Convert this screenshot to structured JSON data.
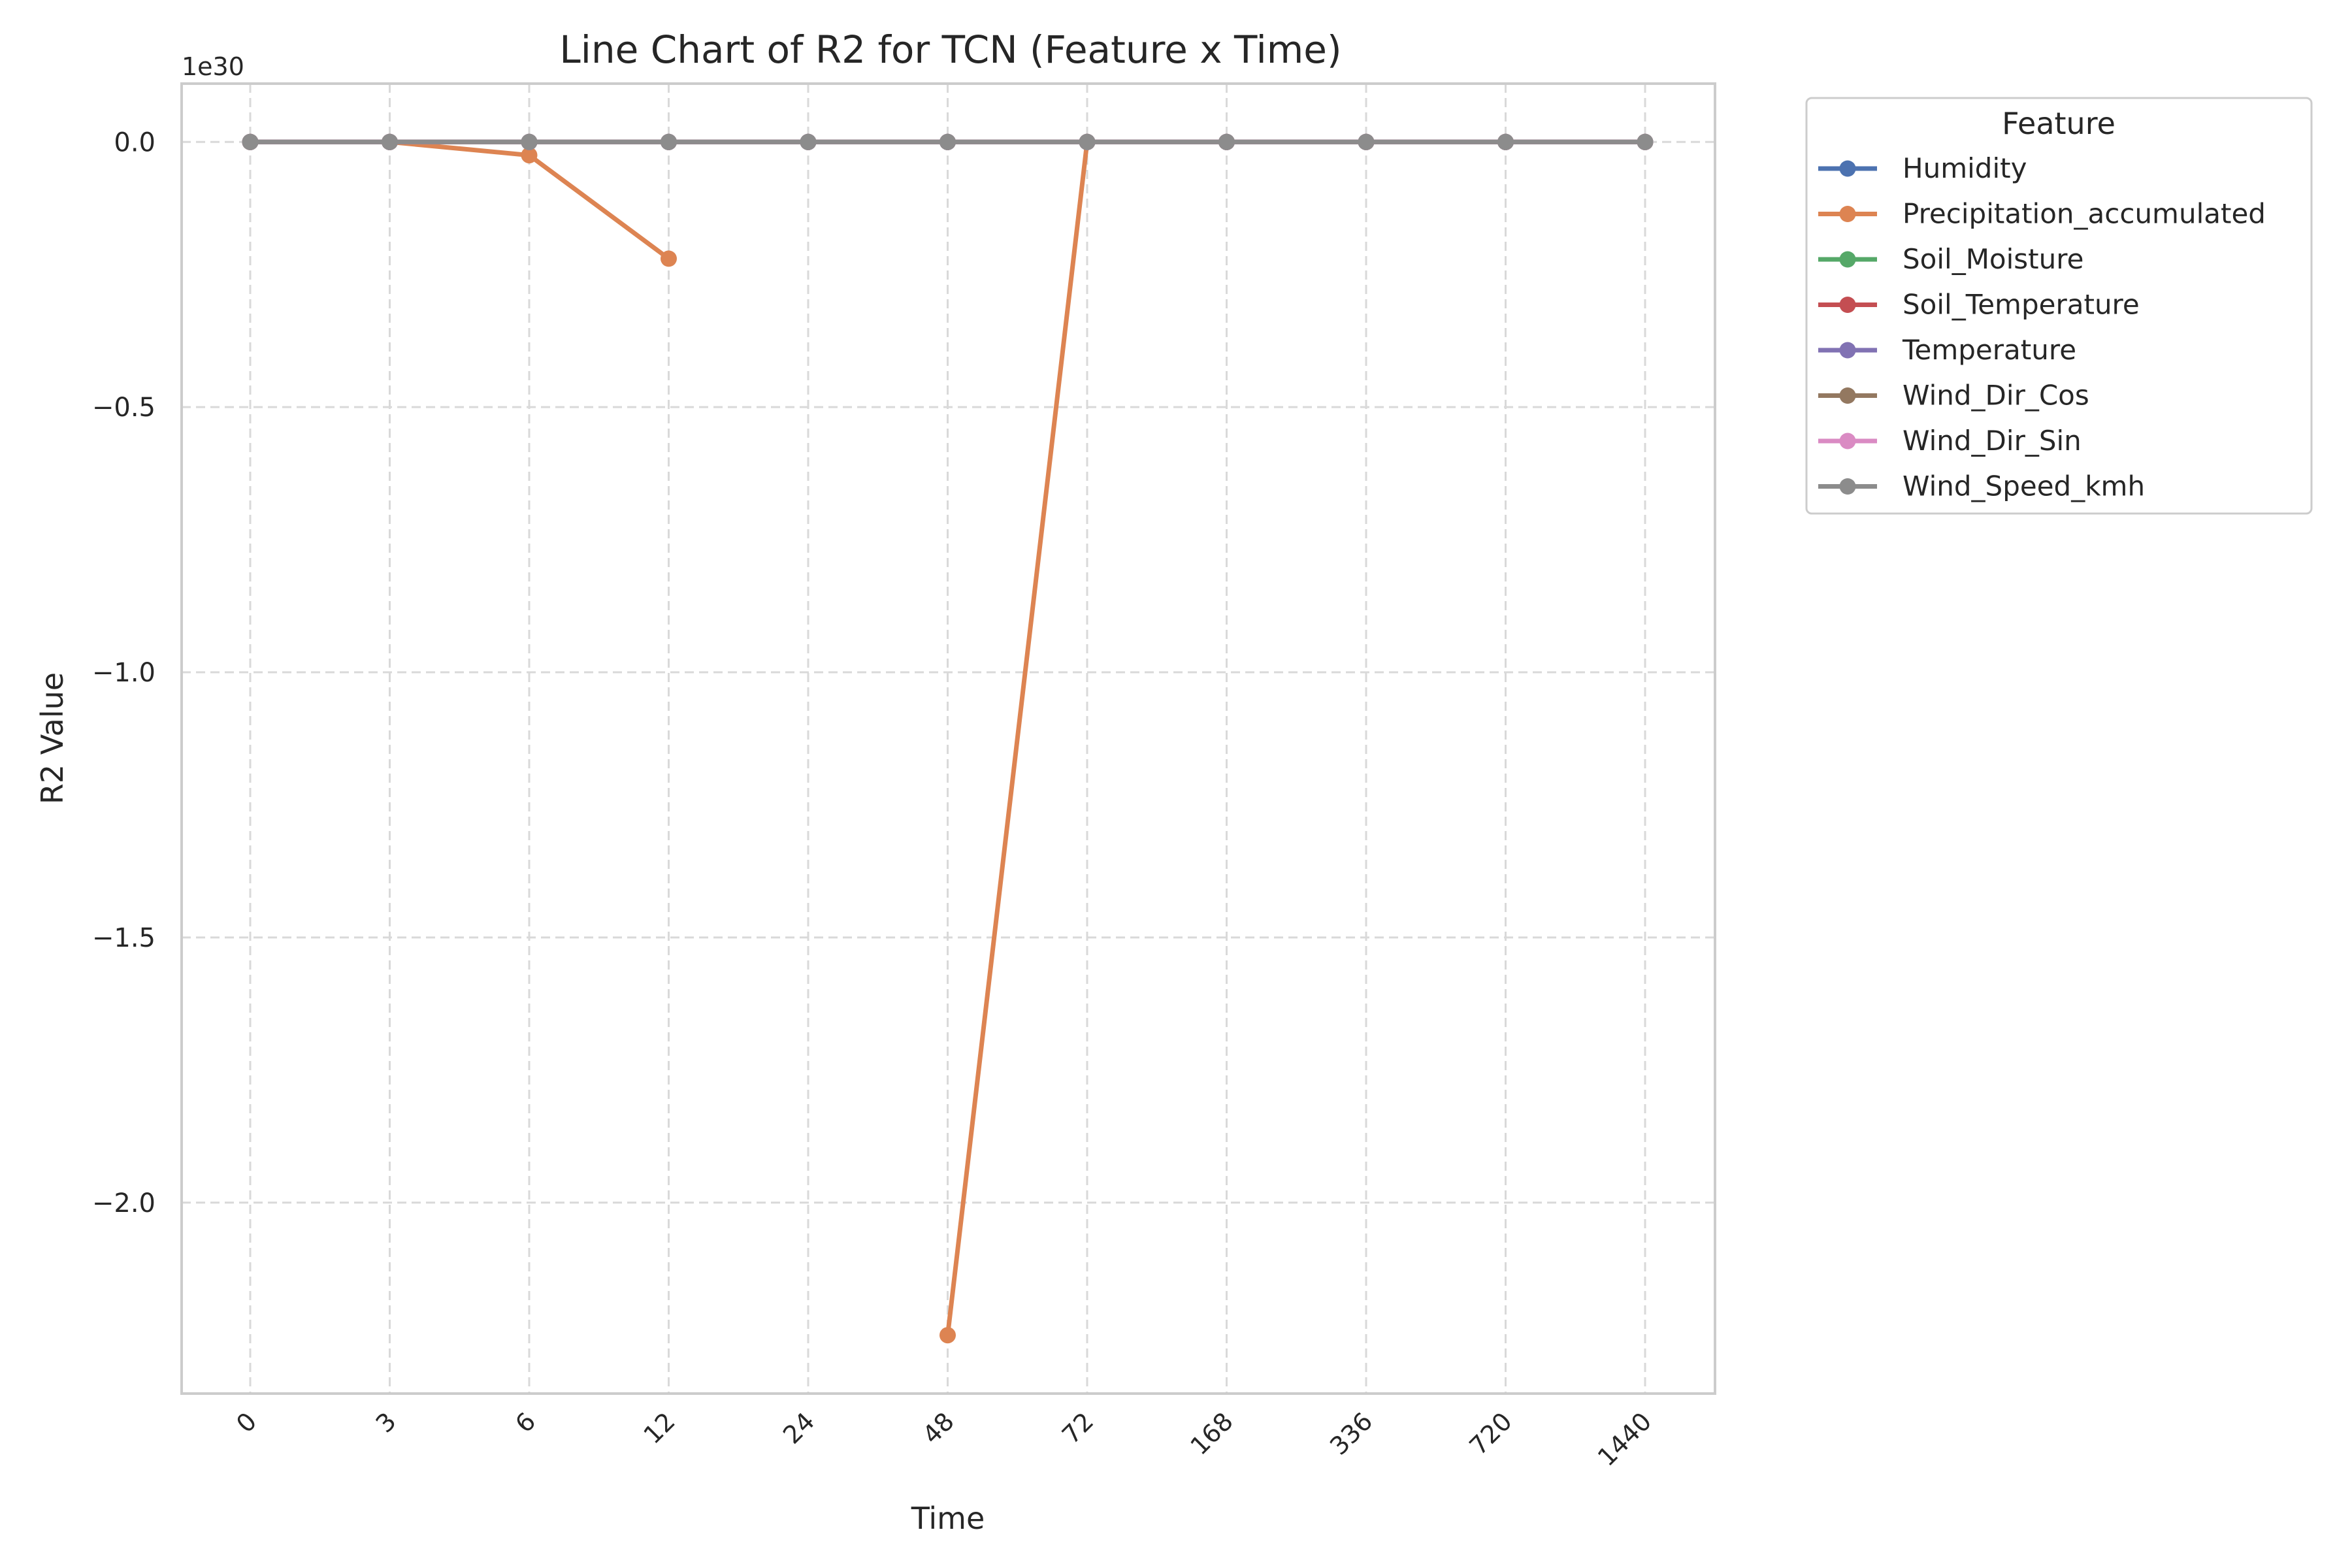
{
  "chart_data": {
    "type": "line",
    "title": "Line Chart of R2 for TCN (Feature x Time)",
    "xlabel": "Time",
    "ylabel": "R2 Value",
    "y_offset_label": "1e30",
    "categories": [
      "0",
      "3",
      "6",
      "12",
      "24",
      "48",
      "72",
      "168",
      "336",
      "720",
      "1440"
    ],
    "yticks": [
      0.0,
      -0.5,
      -1.0,
      -1.5,
      -2.0
    ],
    "ytick_labels": [
      "0.0",
      "−0.5",
      "−1.0",
      "−1.5",
      "−2.0"
    ],
    "ylim": [
      -2.36,
      0.11
    ],
    "y_scale_factor": "1e30",
    "grid": true,
    "grid_style": "dashed",
    "legend_title": "Feature",
    "legend_position": "outside right, top",
    "series": [
      {
        "name": "Humidity",
        "color": "#4c72b0",
        "values": [
          0,
          0,
          0,
          0,
          0,
          0,
          0,
          0,
          0,
          0,
          0
        ]
      },
      {
        "name": "Precipitation_accumulated",
        "color": "#dd8452",
        "values": [
          0,
          0,
          -0.025,
          -0.22,
          null,
          -2.25,
          0,
          0,
          0,
          0,
          0
        ]
      },
      {
        "name": "Soil_Moisture",
        "color": "#55a868",
        "values": [
          0,
          0,
          0,
          0,
          0,
          0,
          0,
          0,
          0,
          0,
          0
        ]
      },
      {
        "name": "Soil_Temperature",
        "color": "#c44e52",
        "values": [
          0,
          0,
          0,
          0,
          0,
          0,
          0,
          0,
          0,
          0,
          0
        ]
      },
      {
        "name": "Temperature",
        "color": "#8172b3",
        "values": [
          0,
          0,
          0,
          0,
          0,
          0,
          0,
          0,
          0,
          0,
          0
        ]
      },
      {
        "name": "Wind_Dir_Cos",
        "color": "#937860",
        "values": [
          0,
          0,
          0,
          0,
          0,
          0,
          0,
          0,
          0,
          0,
          0
        ]
      },
      {
        "name": "Wind_Dir_Sin",
        "color": "#da8bc3",
        "values": [
          0,
          0,
          0,
          0,
          0,
          0,
          0,
          0,
          0,
          0,
          0
        ]
      },
      {
        "name": "Wind_Speed_kmh",
        "color": "#8c8c8c",
        "values": [
          0,
          0,
          0,
          0,
          0,
          0,
          0,
          0,
          0,
          0,
          0
        ]
      }
    ]
  }
}
